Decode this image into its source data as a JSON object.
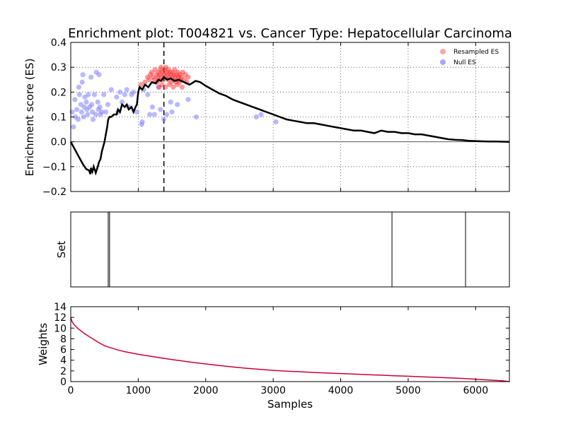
{
  "chart_data": {
    "type": "scatter",
    "title": "Enrichment plot: T004821 vs. Cancer Type: Hepatocellular Carcinoma",
    "x_label": "Samples",
    "x_range": [
      0,
      6500
    ],
    "x_ticks": [
      "0",
      "1000",
      "2000",
      "3000",
      "4000",
      "5000",
      "6000"
    ],
    "x_tick_values": [
      0,
      1000,
      2000,
      3000,
      4000,
      5000,
      6000
    ],
    "panels": {
      "es": {
        "ylabel": "Enrichment score (ES)",
        "ylim": [
          -0.2,
          0.4
        ],
        "y_tick_values": [
          -0.2,
          -0.1,
          0.0,
          0.1,
          0.2,
          0.3,
          0.4
        ],
        "y_ticks": [
          "−0.2",
          "−0.1",
          "0.0",
          "0.1",
          "0.2",
          "0.3",
          "0.4"
        ],
        "grid": true,
        "legend_position": "top-right",
        "legend": [
          {
            "label": "Resampled ES",
            "color": "#ff8080"
          },
          {
            "label": "Null ES",
            "color": "#8080ff"
          }
        ],
        "max_es_x": 1380,
        "es_curve": [
          [
            0,
            0.0
          ],
          [
            60,
            -0.03
          ],
          [
            120,
            -0.06
          ],
          [
            180,
            -0.09
          ],
          [
            230,
            -0.11
          ],
          [
            270,
            -0.115
          ],
          [
            290,
            -0.13
          ],
          [
            300,
            -0.105
          ],
          [
            320,
            -0.12
          ],
          [
            340,
            -0.1
          ],
          [
            370,
            -0.125
          ],
          [
            400,
            -0.1
          ],
          [
            420,
            -0.08
          ],
          [
            440,
            -0.07
          ],
          [
            460,
            -0.04
          ],
          [
            480,
            -0.02
          ],
          [
            500,
            0.0
          ],
          [
            520,
            0.03
          ],
          [
            540,
            0.06
          ],
          [
            555,
            0.09
          ],
          [
            575,
            0.1
          ],
          [
            600,
            0.1
          ],
          [
            640,
            0.11
          ],
          [
            680,
            0.11
          ],
          [
            700,
            0.13
          ],
          [
            730,
            0.12
          ],
          [
            760,
            0.15
          ],
          [
            800,
            0.14
          ],
          [
            830,
            0.15
          ],
          [
            860,
            0.13
          ],
          [
            900,
            0.14
          ],
          [
            930,
            0.12
          ],
          [
            960,
            0.14
          ],
          [
            980,
            0.15
          ],
          [
            1000,
            0.2
          ],
          [
            1020,
            0.22
          ],
          [
            1060,
            0.21
          ],
          [
            1100,
            0.23
          ],
          [
            1150,
            0.22
          ],
          [
            1200,
            0.24
          ],
          [
            1260,
            0.235
          ],
          [
            1300,
            0.25
          ],
          [
            1340,
            0.245
          ],
          [
            1380,
            0.26
          ],
          [
            1430,
            0.25
          ],
          [
            1480,
            0.255
          ],
          [
            1540,
            0.245
          ],
          [
            1600,
            0.25
          ],
          [
            1680,
            0.24
          ],
          [
            1760,
            0.23
          ],
          [
            1850,
            0.245
          ],
          [
            1920,
            0.24
          ],
          [
            2000,
            0.225
          ],
          [
            2100,
            0.21
          ],
          [
            2200,
            0.195
          ],
          [
            2300,
            0.185
          ],
          [
            2400,
            0.17
          ],
          [
            2500,
            0.16
          ],
          [
            2600,
            0.15
          ],
          [
            2700,
            0.14
          ],
          [
            2800,
            0.13
          ],
          [
            2900,
            0.12
          ],
          [
            3000,
            0.11
          ],
          [
            3100,
            0.1
          ],
          [
            3200,
            0.09
          ],
          [
            3300,
            0.085
          ],
          [
            3400,
            0.08
          ],
          [
            3500,
            0.075
          ],
          [
            3600,
            0.075
          ],
          [
            3700,
            0.07
          ],
          [
            3800,
            0.065
          ],
          [
            3900,
            0.06
          ],
          [
            4000,
            0.055
          ],
          [
            4100,
            0.05
          ],
          [
            4200,
            0.045
          ],
          [
            4300,
            0.045
          ],
          [
            4400,
            0.04
          ],
          [
            4500,
            0.035
          ],
          [
            4600,
            0.045
          ],
          [
            4700,
            0.04
          ],
          [
            4800,
            0.04
          ],
          [
            4900,
            0.035
          ],
          [
            5000,
            0.035
          ],
          [
            5100,
            0.03
          ],
          [
            5200,
            0.03
          ],
          [
            5300,
            0.025
          ],
          [
            5400,
            0.02
          ],
          [
            5500,
            0.015
          ],
          [
            5600,
            0.01
          ],
          [
            5700,
            0.008
          ],
          [
            5800,
            0.007
          ],
          [
            5900,
            0.004
          ],
          [
            6000,
            0.003
          ],
          [
            6100,
            0.002
          ],
          [
            6200,
            0.001
          ],
          [
            6300,
            0.001
          ],
          [
            6500,
            0.0
          ]
        ],
        "null_es": [
          [
            20,
            0.12
          ],
          [
            40,
            0.06
          ],
          [
            60,
            0.17
          ],
          [
            70,
            0.1
          ],
          [
            90,
            0.13
          ],
          [
            110,
            0.09
          ],
          [
            120,
            0.22
          ],
          [
            130,
            0.19
          ],
          [
            150,
            0.15
          ],
          [
            160,
            0.12
          ],
          [
            170,
            0.24
          ],
          [
            180,
            0.27
          ],
          [
            190,
            0.1
          ],
          [
            200,
            0.14
          ],
          [
            210,
            0.18
          ],
          [
            230,
            0.16
          ],
          [
            240,
            0.13
          ],
          [
            250,
            0.11
          ],
          [
            260,
            0.19
          ],
          [
            280,
            0.14
          ],
          [
            300,
            0.26
          ],
          [
            310,
            0.15
          ],
          [
            320,
            0.12
          ],
          [
            330,
            0.09
          ],
          [
            350,
            0.19
          ],
          [
            370,
            0.11
          ],
          [
            380,
            0.28
          ],
          [
            400,
            0.16
          ],
          [
            410,
            0.13
          ],
          [
            420,
            0.27
          ],
          [
            430,
            0.14
          ],
          [
            440,
            0.11
          ],
          [
            460,
            0.12
          ],
          [
            490,
            0.19
          ],
          [
            520,
            0.12
          ],
          [
            550,
            0.15
          ],
          [
            600,
            0.21
          ],
          [
            680,
            0.18
          ],
          [
            700,
            0.12
          ],
          [
            730,
            0.2
          ],
          [
            760,
            0.16
          ],
          [
            800,
            0.19
          ],
          [
            830,
            0.21
          ],
          [
            860,
            0.14
          ],
          [
            900,
            0.19
          ],
          [
            930,
            0.2
          ],
          [
            980,
            0.12
          ],
          [
            1050,
            0.07
          ],
          [
            1060,
            0.08
          ],
          [
            1080,
            0.21
          ],
          [
            1140,
            0.19
          ],
          [
            1170,
            0.11
          ],
          [
            1210,
            0.14
          ],
          [
            1240,
            0.11
          ],
          [
            1300,
            0.22
          ],
          [
            1330,
            0.13
          ],
          [
            1380,
            0.09
          ],
          [
            1420,
            0.11
          ],
          [
            1480,
            0.16
          ],
          [
            1500,
            0.12
          ],
          [
            1580,
            0.15
          ],
          [
            1740,
            0.17
          ],
          [
            1860,
            0.1
          ],
          [
            2750,
            0.1
          ],
          [
            2820,
            0.11
          ],
          [
            3040,
            0.08
          ]
        ],
        "resampled_es": [
          [
            1040,
            0.23
          ],
          [
            1100,
            0.24
          ],
          [
            1140,
            0.26
          ],
          [
            1160,
            0.25
          ],
          [
            1180,
            0.27
          ],
          [
            1200,
            0.28
          ],
          [
            1220,
            0.26
          ],
          [
            1240,
            0.25
          ],
          [
            1250,
            0.29
          ],
          [
            1270,
            0.27
          ],
          [
            1280,
            0.24
          ],
          [
            1290,
            0.26
          ],
          [
            1300,
            0.28
          ],
          [
            1310,
            0.25
          ],
          [
            1320,
            0.27
          ],
          [
            1330,
            0.29
          ],
          [
            1340,
            0.3
          ],
          [
            1350,
            0.26
          ],
          [
            1360,
            0.28
          ],
          [
            1370,
            0.25
          ],
          [
            1380,
            0.27
          ],
          [
            1390,
            0.29
          ],
          [
            1400,
            0.26
          ],
          [
            1410,
            0.3
          ],
          [
            1420,
            0.28
          ],
          [
            1430,
            0.27
          ],
          [
            1440,
            0.25
          ],
          [
            1450,
            0.29
          ],
          [
            1460,
            0.26
          ],
          [
            1470,
            0.28
          ],
          [
            1480,
            0.27
          ],
          [
            1490,
            0.24
          ],
          [
            1500,
            0.26
          ],
          [
            1510,
            0.28
          ],
          [
            1520,
            0.25
          ],
          [
            1530,
            0.27
          ],
          [
            1540,
            0.29
          ],
          [
            1550,
            0.26
          ],
          [
            1560,
            0.24
          ],
          [
            1570,
            0.27
          ],
          [
            1580,
            0.25
          ],
          [
            1590,
            0.28
          ],
          [
            1600,
            0.26
          ],
          [
            1610,
            0.24
          ],
          [
            1620,
            0.27
          ],
          [
            1630,
            0.25
          ],
          [
            1640,
            0.26
          ],
          [
            1660,
            0.28
          ],
          [
            1680,
            0.25
          ],
          [
            1700,
            0.27
          ],
          [
            1720,
            0.24
          ],
          [
            1740,
            0.26
          ],
          [
            1310,
            0.22
          ],
          [
            1350,
            0.23
          ],
          [
            1400,
            0.22
          ],
          [
            1460,
            0.23
          ],
          [
            1520,
            0.22
          ],
          [
            1580,
            0.23
          ],
          [
            1650,
            0.22
          ]
        ]
      },
      "set": {
        "ylabel": "Set",
        "hit_positions": [
          555,
          575,
          4760,
          5850
        ]
      },
      "weights": {
        "ylabel": "Weights",
        "ylim": [
          0,
          14
        ],
        "y_tick_values": [
          0,
          2,
          4,
          6,
          8,
          10,
          12,
          14
        ],
        "y_ticks": [
          "0",
          "2",
          "4",
          "6",
          "8",
          "10",
          "12",
          "14"
        ],
        "line_color": "#cc0033",
        "curve": [
          [
            0,
            12.0
          ],
          [
            20,
            11.2
          ],
          [
            50,
            10.6
          ],
          [
            100,
            10.0
          ],
          [
            200,
            9.0
          ],
          [
            300,
            8.2
          ],
          [
            400,
            7.4
          ],
          [
            500,
            6.7
          ],
          [
            600,
            6.3
          ],
          [
            700,
            5.9
          ],
          [
            800,
            5.6
          ],
          [
            1000,
            5.1
          ],
          [
            1200,
            4.7
          ],
          [
            1400,
            4.3
          ],
          [
            1600,
            3.95
          ],
          [
            1800,
            3.6
          ],
          [
            2000,
            3.3
          ],
          [
            2200,
            3.0
          ],
          [
            2400,
            2.75
          ],
          [
            2600,
            2.5
          ],
          [
            2800,
            2.3
          ],
          [
            3000,
            2.1
          ],
          [
            3200,
            1.95
          ],
          [
            3400,
            1.85
          ],
          [
            3600,
            1.7
          ],
          [
            3800,
            1.6
          ],
          [
            4000,
            1.5
          ],
          [
            4200,
            1.4
          ],
          [
            4400,
            1.3
          ],
          [
            4600,
            1.2
          ],
          [
            4800,
            1.1
          ],
          [
            5000,
            1.0
          ],
          [
            5200,
            0.9
          ],
          [
            5400,
            0.8
          ],
          [
            5600,
            0.7
          ],
          [
            5800,
            0.6
          ],
          [
            6000,
            0.45
          ],
          [
            6200,
            0.3
          ],
          [
            6400,
            0.15
          ],
          [
            6500,
            0.0
          ]
        ]
      }
    }
  }
}
